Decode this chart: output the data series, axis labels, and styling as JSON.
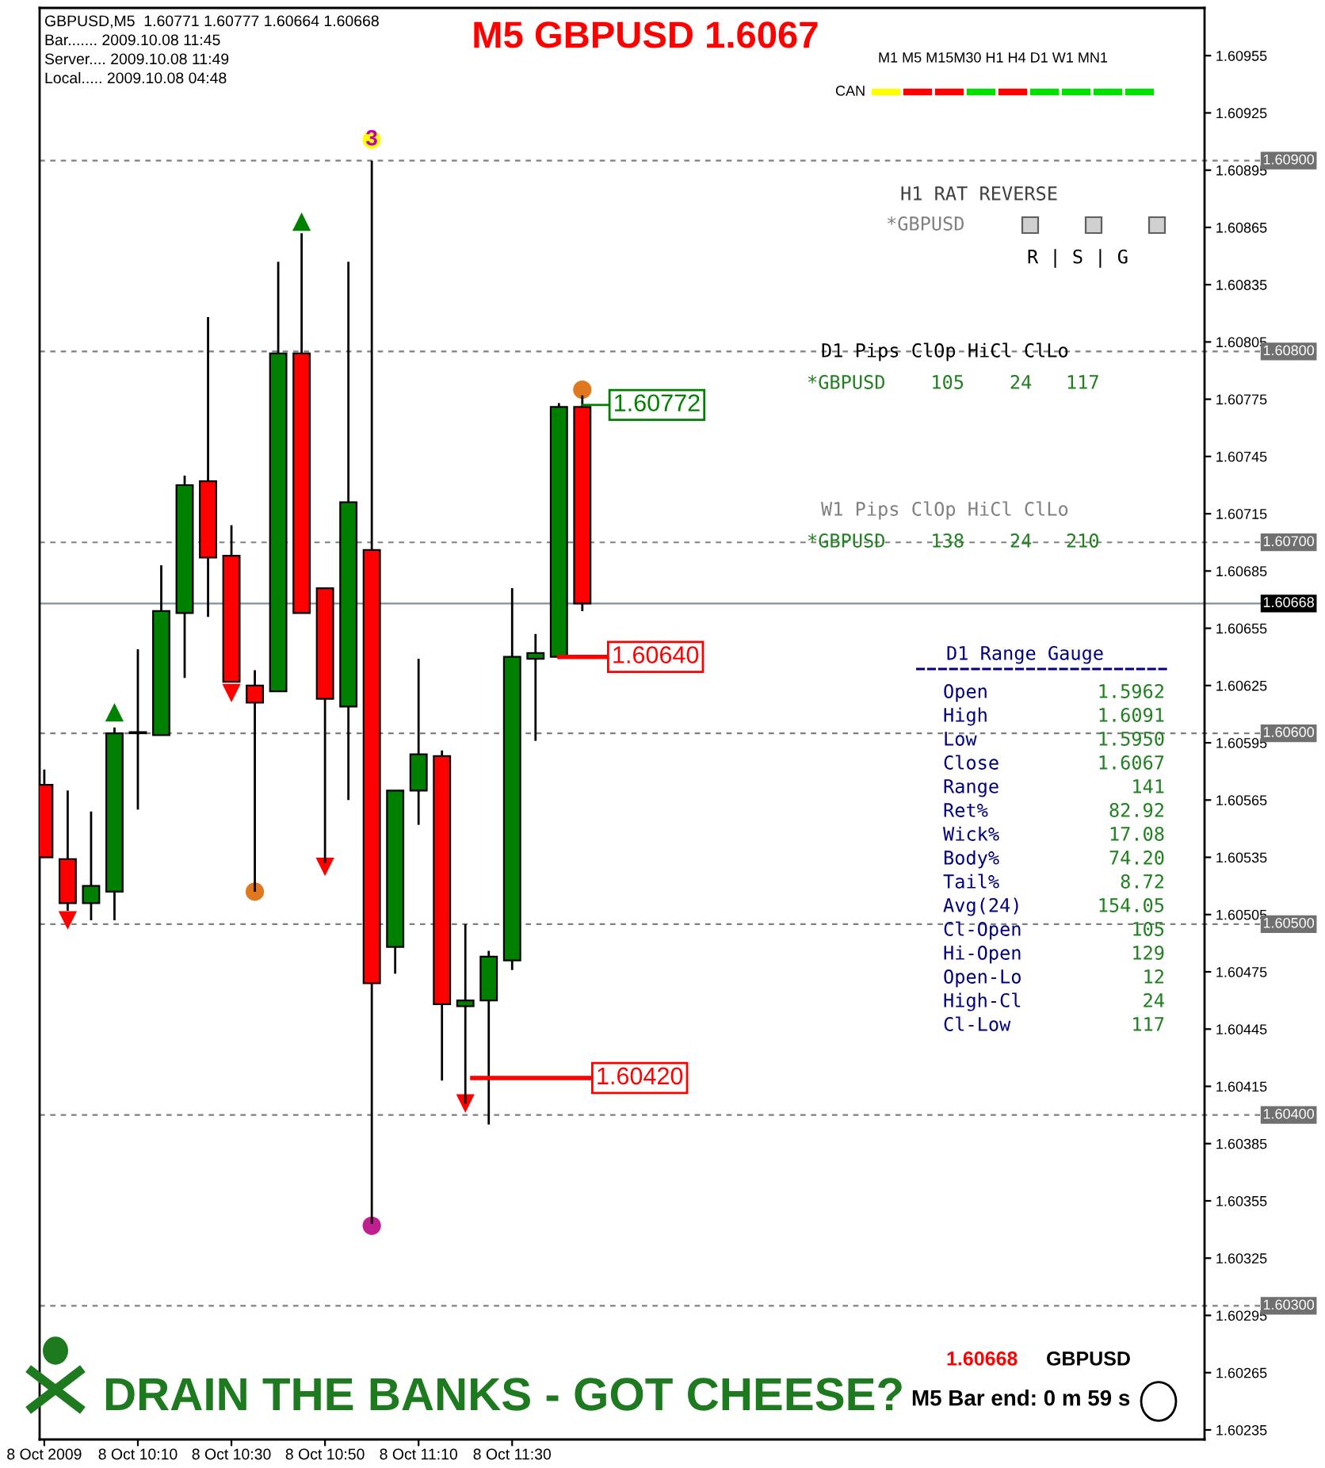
{
  "chart_data": {
    "type": "candlestick",
    "title": "M5 GBPUSD 1.6067",
    "x": [
      "2009-10-08T09:50",
      "2009-10-08T09:55",
      "2009-10-08T10:00",
      "2009-10-08T10:05",
      "2009-10-08T10:10",
      "2009-10-08T10:15",
      "2009-10-08T10:20",
      "2009-10-08T10:25",
      "2009-10-08T10:30",
      "2009-10-08T10:35",
      "2009-10-08T10:40",
      "2009-10-08T10:45",
      "2009-10-08T10:50",
      "2009-10-08T10:55",
      "2009-10-08T11:00",
      "2009-10-08T11:05",
      "2009-10-08T11:10",
      "2009-10-08T11:15",
      "2009-10-08T11:20",
      "2009-10-08T11:25",
      "2009-10-08T11:30",
      "2009-10-08T11:35",
      "2009-10-08T11:40",
      "2009-10-08T11:45"
    ],
    "ohlc": [
      [
        1.60573,
        1.60581,
        1.60535,
        1.60535
      ],
      [
        1.60534,
        1.6057,
        1.60507,
        1.60511
      ],
      [
        1.60511,
        1.60559,
        1.60502,
        1.6052
      ],
      [
        1.60517,
        1.60603,
        1.60502,
        1.606
      ],
      [
        1.606,
        1.60644,
        1.6056,
        1.606
      ],
      [
        1.60599,
        1.60688,
        1.60599,
        1.60664
      ],
      [
        1.60663,
        1.60735,
        1.60629,
        1.6073
      ],
      [
        1.60732,
        1.60818,
        1.60661,
        1.60692
      ],
      [
        1.60693,
        1.60709,
        1.60627,
        1.60627
      ],
      [
        1.60625,
        1.60633,
        1.60517,
        1.60616
      ],
      [
        1.60622,
        1.60847,
        1.60622,
        1.60799
      ],
      [
        1.60799,
        1.60862,
        1.60663,
        1.60663
      ],
      [
        1.60676,
        1.60676,
        1.60532,
        1.60618
      ],
      [
        1.60614,
        1.60847,
        1.60565,
        1.60721
      ],
      [
        1.60696,
        1.609,
        1.60343,
        1.60469
      ],
      [
        1.60488,
        1.6057,
        1.60474,
        1.6057
      ],
      [
        1.6057,
        1.60639,
        1.60552,
        1.60589
      ],
      [
        1.60588,
        1.60591,
        1.60418,
        1.60458
      ],
      [
        1.60457,
        1.605,
        1.60406,
        1.6046
      ],
      [
        1.6046,
        1.60486,
        1.60395,
        1.60483
      ],
      [
        1.60481,
        1.60676,
        1.60476,
        1.6064
      ],
      [
        1.60639,
        1.60652,
        1.60596,
        1.60642
      ],
      [
        1.6064,
        1.60773,
        1.60639,
        1.60771
      ],
      [
        1.60771,
        1.60777,
        1.60664,
        1.60668
      ]
    ],
    "colors": [
      "#ff0000",
      "#ff0000",
      "#008000",
      "#008000",
      "#008000",
      "#008000",
      "#008000",
      "#ff0000",
      "#ff0000",
      "#ff0000",
      "#008000",
      "#ff0000",
      "#ff0000",
      "#008000",
      "#ff0000",
      "#008000",
      "#008000",
      "#ff0000",
      "#008000",
      "#008000",
      "#008000",
      "#008000",
      "#008000",
      "#ff0000"
    ],
    "series": [
      {
        "type": "scatter",
        "marker": "triangle",
        "color": "#008000",
        "x": [
          "2009-10-08T10:05",
          "2009-10-08T10:45"
        ],
        "values": [
          1.60611,
          1.60868
        ]
      },
      {
        "type": "scatter",
        "marker": "triangle_down",
        "color": "#ff0000",
        "x": [
          "2009-10-08T09:55",
          "2009-10-08T10:30",
          "2009-10-08T10:50",
          "2009-10-08T11:20"
        ],
        "values": [
          1.60502,
          1.60621,
          1.6053,
          1.60406
        ]
      },
      {
        "type": "scatter",
        "marker": "circle",
        "colors": [
          "#e07820",
          "#e07820",
          "#c0208f",
          "#ffff00"
        ],
        "x": [
          "2009-10-08T10:35",
          "2009-10-08T11:45",
          "2009-10-08T11:00",
          "2009-10-08T11:00"
        ],
        "values": [
          1.60517,
          1.6078,
          1.60342,
          1.60911
        ]
      }
    ],
    "xlim": [
      "2009-10-08T09:49",
      "2009-10-08T13:58"
    ],
    "xticks": [
      {
        "value": "2009-10-08T09:50",
        "label": "8 Oct 2009"
      },
      {
        "value": "2009-10-08T10:10",
        "label": "8 Oct 10:10"
      },
      {
        "value": "2009-10-08T10:30",
        "label": "8 Oct 10:30"
      },
      {
        "value": "2009-10-08T10:50",
        "label": "8 Oct 10:50"
      },
      {
        "value": "2009-10-08T11:10",
        "label": "8 Oct 11:10"
      },
      {
        "value": "2009-10-08T11:30",
        "label": "8 Oct 11:30"
      }
    ],
    "ylim": [
      1.6023,
      1.6098
    ],
    "yticks": [
      1.60955,
      1.60925,
      1.60895,
      1.60865,
      1.60835,
      1.60805,
      1.60775,
      1.60745,
      1.60715,
      1.60685,
      1.60655,
      1.60625,
      1.60595,
      1.60565,
      1.60535,
      1.60505,
      1.60475,
      1.60445,
      1.60415,
      1.60385,
      1.60355,
      1.60325,
      1.60295,
      1.60265,
      1.60235
    ],
    "ref_lines": [
      {
        "axis": "y",
        "value": 1.609,
        "label": "1.60900",
        "color": "#808080",
        "line_style": "dashed"
      },
      {
        "axis": "y",
        "value": 1.608,
        "label": "1.60800",
        "color": "#808080",
        "line_style": "dashed"
      },
      {
        "axis": "y",
        "value": 1.607,
        "label": "1.60700",
        "color": "#808080",
        "line_style": "dashed"
      },
      {
        "axis": "y",
        "value": 1.606,
        "label": "1.60600",
        "color": "#808080",
        "line_style": "dashed"
      },
      {
        "axis": "y",
        "value": 1.605,
        "label": "1.60500",
        "color": "#808080",
        "line_style": "dashed"
      },
      {
        "axis": "y",
        "value": 1.604,
        "label": "1.60400",
        "color": "#808080",
        "line_style": "dashed"
      },
      {
        "axis": "y",
        "value": 1.603,
        "label": "1.60300",
        "color": "#808080",
        "line_style": "dashed"
      },
      {
        "axis": "y",
        "value": 1.60668,
        "label": "1.60668",
        "color": "#8090a0",
        "line_style": "solid"
      }
    ],
    "annotations": [
      "GBPUSD,M5  1.60771 1.60777 1.60664 1.60668",
      "Bar....... 2009.10.08 11:45",
      "Server.... 2009.10.08 11:49",
      "Local..... 2009.10.08 04:48",
      "M1 M5 M15M30 H1 H4 D1 W1 MN1",
      "CAN",
      "H1 RAT REVERSE",
      "*GBPUSD",
      "R | S | G",
      "D1 Pips ClOp HiCl ClLo",
      "*GBPUSD    105    24   117",
      "W1 Pips ClOp HiCl ClLo",
      "*GBPUSD    138    24   210",
      "D1 Range Gauge",
      "Open",
      "1.5962",
      "High",
      "1.6091",
      "Low",
      "1.5950",
      "Close",
      "1.6067",
      "Range",
      "141",
      "Ret%",
      "82.92",
      "Wick%",
      "17.08",
      "Body%",
      "74.20",
      "Tail%",
      "8.72",
      "Avg(24)",
      "154.05",
      "Cl-Open",
      "105",
      "Hi-Open",
      "129",
      "Open-Lo",
      "12",
      "High-Cl",
      "24",
      "Cl-Low",
      "117",
      "DRAIN THE BANKS - GOT CHEESE?",
      "1.60668",
      "GBPUSD",
      "M5 Bar end: 0 m 59 s",
      {
        "text": "3",
        "x": "2009-10-08T11:00",
        "y": 1.60911
      },
      {
        "text": "1.60772",
        "x": "2009-10-08T11:45",
        "y": 1.60772
      },
      {
        "text": "1.60640",
        "x": "2009-10-08T11:40",
        "y": 1.6064
      },
      "1.60420"
    ]
  }
}
